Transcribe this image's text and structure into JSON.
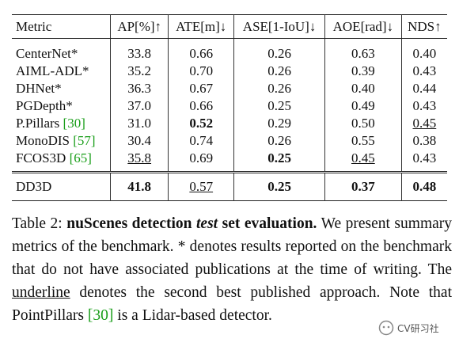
{
  "table": {
    "header": [
      "Metric",
      "AP[%]↑",
      "ATE[m]↓",
      "ASE[1-IoU]↓",
      "AOE[rad]↓",
      "NDS↑"
    ],
    "rows": [
      [
        {
          "text": "CenterNet*"
        },
        {
          "text": "33.8"
        },
        {
          "text": "0.66"
        },
        {
          "text": "0.26"
        },
        {
          "text": "0.63"
        },
        {
          "text": "0.40"
        }
      ],
      [
        {
          "text": "AIML-ADL*"
        },
        {
          "text": "35.2"
        },
        {
          "text": "0.70"
        },
        {
          "text": "0.26"
        },
        {
          "text": "0.39"
        },
        {
          "text": "0.43"
        }
      ],
      [
        {
          "text": "DHNet*"
        },
        {
          "text": "36.3"
        },
        {
          "text": "0.67"
        },
        {
          "text": "0.26"
        },
        {
          "text": "0.40"
        },
        {
          "text": "0.44"
        }
      ],
      [
        {
          "text": "PGDepth*"
        },
        {
          "text": "37.0"
        },
        {
          "text": "0.66"
        },
        {
          "text": "0.25"
        },
        {
          "text": "0.49"
        },
        {
          "text": "0.43"
        }
      ],
      [
        {
          "text": "P.Pillars",
          "cite": "[30]"
        },
        {
          "text": "31.0"
        },
        {
          "text": "0.52",
          "bold": true
        },
        {
          "text": "0.29"
        },
        {
          "text": "0.50"
        },
        {
          "text": "0.45",
          "underline": true
        }
      ],
      [
        {
          "text": "MonoDIS",
          "cite": "[57]"
        },
        {
          "text": "30.4"
        },
        {
          "text": "0.74"
        },
        {
          "text": "0.26"
        },
        {
          "text": "0.55"
        },
        {
          "text": "0.38"
        }
      ],
      [
        {
          "text": "FCOS3D",
          "cite": "[65]"
        },
        {
          "text": "35.8",
          "underline": true
        },
        {
          "text": "0.69"
        },
        {
          "text": "0.25",
          "bold": true
        },
        {
          "text": "0.45",
          "underline": true
        },
        {
          "text": "0.43"
        }
      ]
    ],
    "summary": [
      {
        "text": "DD3D"
      },
      {
        "text": "41.8",
        "bold": true
      },
      {
        "text": "0.57",
        "underline": true
      },
      {
        "text": "0.25",
        "bold": true
      },
      {
        "text": "0.37",
        "bold": true
      },
      {
        "text": "0.48",
        "bold": true
      }
    ]
  },
  "caption": [
    {
      "text": "Table 2: "
    },
    {
      "text": "nuScenes detection ",
      "bold": true
    },
    {
      "text": "test",
      "bold": true,
      "italic": true
    },
    {
      "text": " set evaluation.",
      "bold": true
    },
    {
      "text": " We present summary metrics of the benchmark. * denotes results reported on the benchmark that do not have associated publications at the time of writing. The "
    },
    {
      "text": "underline",
      "underline": true
    },
    {
      "text": " denotes the second best published approach. Note that PointPillars "
    },
    {
      "text": "[30]",
      "cite": true
    },
    {
      "text": " is a Lidar-based detector."
    }
  ],
  "watermark": "CV研习社"
}
